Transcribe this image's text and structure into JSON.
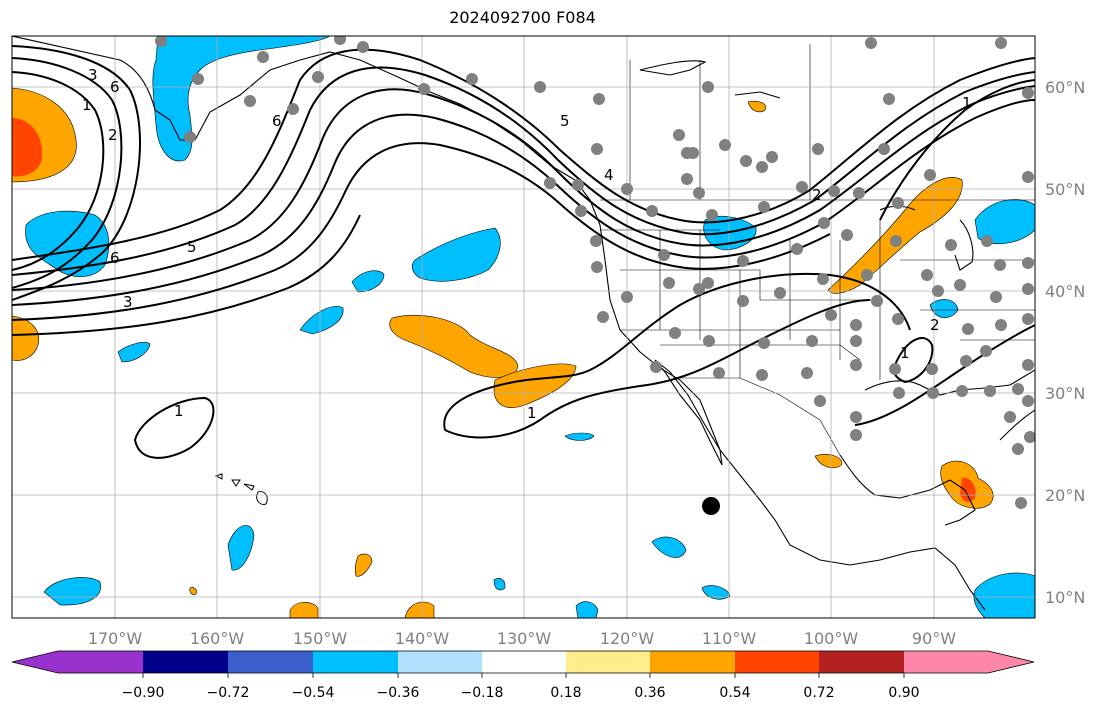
{
  "title": "2024092700 F084",
  "lon_labels": [
    "170°W",
    "160°W",
    "150°W",
    "140°W",
    "130°W",
    "120°W",
    "110°W",
    "100°W",
    "90°W"
  ],
  "lat_labels": [
    "60°N",
    "50°N",
    "40°N",
    "30°N",
    "20°N",
    "10°N"
  ],
  "colorbar": {
    "colors": [
      "#9932cc",
      "#00008b",
      "#3a5fcd",
      "#00bfff",
      "#b0e2ff",
      "#ffffff",
      "#ffec8b",
      "#ffa500",
      "#ff4500",
      "#b22222",
      "#ff88aa"
    ],
    "tick_labels": [
      "−0.90",
      "−0.72",
      "−0.54",
      "−0.36",
      "−0.18",
      "0.18",
      "0.36",
      "0.54",
      "0.72",
      "0.90"
    ]
  },
  "contour_labels": [
    "1",
    "2",
    "3",
    "5",
    "6",
    "6",
    "5",
    "3",
    "1",
    "1",
    "1",
    "6",
    "4",
    "2",
    "1",
    "2"
  ],
  "colors": {
    "positive": "#ffa500",
    "strong_positive": "#ff4500",
    "negative": "#00bfff",
    "station": "#808080",
    "grid": "#b0b0b0"
  },
  "marker": {
    "lon": -111.5,
    "lat": 18.9
  }
}
